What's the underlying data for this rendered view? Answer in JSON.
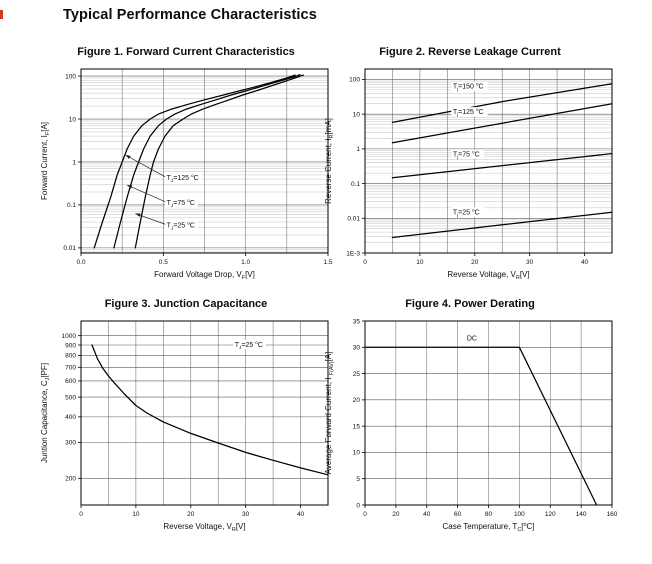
{
  "page": {
    "heading": "Typical Performance Characteristics"
  },
  "chart_data": [
    {
      "id": "fig1",
      "type": "line",
      "title": "Figure 1. Forward Current Characteristics",
      "x": {
        "scale": "linear",
        "min": 0,
        "max": 1.5,
        "grid_step": 0.25,
        "ticks": [
          {
            "v": 0,
            "label": "0.0"
          },
          {
            "v": 0.5,
            "label": "0.5"
          },
          {
            "v": 1,
            "label": "1.0"
          },
          {
            "v": 1.5,
            "label": "1.5"
          }
        ],
        "title": [
          {
            "t": "Forward Voltage Drop, V"
          },
          {
            "t": "F",
            "s": "sub"
          },
          {
            "t": "[V]"
          }
        ]
      },
      "y": {
        "scale": "log",
        "min": 0.0076,
        "max": 146,
        "ticks": [
          {
            "v": 0.01,
            "label": "0.01"
          },
          {
            "v": 0.1,
            "label": "0.1"
          },
          {
            "v": 1,
            "label": "1"
          },
          {
            "v": 10,
            "label": "10"
          },
          {
            "v": 100,
            "label": "100"
          }
        ],
        "title": [
          {
            "t": "Forward Current, I"
          },
          {
            "t": "F",
            "s": "sub"
          },
          {
            "t": "[A]"
          }
        ]
      },
      "series": [
        {
          "name": "TJ=125C",
          "points": [
            [
              0.08,
              0.01
            ],
            [
              0.13,
              0.04
            ],
            [
              0.18,
              0.15
            ],
            [
              0.22,
              0.5
            ],
            [
              0.25,
              1
            ],
            [
              0.28,
              2
            ],
            [
              0.32,
              4
            ],
            [
              0.37,
              7
            ],
            [
              0.42,
              10
            ],
            [
              0.47,
              13
            ],
            [
              0.55,
              17
            ],
            [
              0.65,
              22
            ],
            [
              0.75,
              28
            ],
            [
              0.85,
              35
            ],
            [
              0.95,
              44
            ],
            [
              1.05,
              55
            ],
            [
              1.15,
              70
            ],
            [
              1.25,
              90
            ],
            [
              1.3,
              105
            ]
          ]
        },
        {
          "name": "TJ=75C",
          "points": [
            [
              0.2,
              0.01
            ],
            [
              0.24,
              0.04
            ],
            [
              0.28,
              0.15
            ],
            [
              0.32,
              0.5
            ],
            [
              0.35,
              1
            ],
            [
              0.38,
              2
            ],
            [
              0.42,
              4
            ],
            [
              0.47,
              7
            ],
            [
              0.52,
              10
            ],
            [
              0.57,
              13
            ],
            [
              0.64,
              17
            ],
            [
              0.73,
              22
            ],
            [
              0.82,
              28
            ],
            [
              0.91,
              36
            ],
            [
              1,
              45
            ],
            [
              1.1,
              58
            ],
            [
              1.2,
              75
            ],
            [
              1.3,
              97
            ],
            [
              1.33,
              108
            ]
          ]
        },
        {
          "name": "TJ=25C",
          "points": [
            [
              0.33,
              0.01
            ],
            [
              0.36,
              0.04
            ],
            [
              0.39,
              0.15
            ],
            [
              0.42,
              0.5
            ],
            [
              0.44,
              1
            ],
            [
              0.47,
              2
            ],
            [
              0.51,
              4
            ],
            [
              0.56,
              7
            ],
            [
              0.62,
              10
            ],
            [
              0.67,
              13
            ],
            [
              0.74,
              17
            ],
            [
              0.82,
              22
            ],
            [
              0.9,
              28
            ],
            [
              0.98,
              36
            ],
            [
              1.07,
              46
            ],
            [
              1.16,
              60
            ],
            [
              1.26,
              80
            ],
            [
              1.35,
              105
            ]
          ]
        }
      ],
      "annotations": [
        {
          "segs": [
            {
              "t": "T"
            },
            {
              "t": "J",
              "s": "sub"
            },
            {
              "t": "=125 "
            },
            {
              "t": "o",
              "s": "sup"
            },
            {
              "t": "C"
            }
          ],
          "x": 0.52,
          "y": 0.38,
          "bg": true,
          "arrow": {
            "x": 0.27,
            "y": 1.45
          }
        },
        {
          "segs": [
            {
              "t": "T"
            },
            {
              "t": "J",
              "s": "sub"
            },
            {
              "t": "=75 "
            },
            {
              "t": "o",
              "s": "sup"
            },
            {
              "t": "C"
            }
          ],
          "x": 0.52,
          "y": 0.1,
          "bg": true,
          "arrow": {
            "x": 0.28,
            "y": 0.29
          }
        },
        {
          "segs": [
            {
              "t": "T"
            },
            {
              "t": "J",
              "s": "sub"
            },
            {
              "t": "=25 "
            },
            {
              "t": "o",
              "s": "sup"
            },
            {
              "t": "C"
            }
          ],
          "x": 0.52,
          "y": 0.03,
          "bg": true,
          "arrow": {
            "x": 0.33,
            "y": 0.063
          }
        }
      ]
    },
    {
      "id": "fig2",
      "type": "line",
      "title": "Figure 2. Reverse Leakage Current",
      "x": {
        "scale": "linear",
        "min": 0,
        "max": 45,
        "grid_step": 5,
        "ticks": [
          {
            "v": 0,
            "label": "0"
          },
          {
            "v": 10,
            "label": "10"
          },
          {
            "v": 20,
            "label": "20"
          },
          {
            "v": 30,
            "label": "30"
          },
          {
            "v": 40,
            "label": "40"
          }
        ],
        "title": [
          {
            "t": "Reverse Voltage, V"
          },
          {
            "t": "R",
            "s": "sub"
          },
          {
            "t": "[V]"
          }
        ]
      },
      "y": {
        "scale": "log",
        "min": 0.001,
        "max": 200,
        "ticks": [
          {
            "v": 0.001,
            "label": "1E-3"
          },
          {
            "v": 0.01,
            "label": "0.01"
          },
          {
            "v": 0.1,
            "label": "0.1"
          },
          {
            "v": 1,
            "label": "1"
          },
          {
            "v": 10,
            "label": "10"
          },
          {
            "v": 100,
            "label": "100"
          }
        ],
        "title": [
          {
            "t": "Reverse Current, I"
          },
          {
            "t": "R",
            "s": "sub"
          },
          {
            "t": "[mA]"
          }
        ]
      },
      "series": [
        {
          "name": "Tj=150C",
          "points": [
            [
              5,
              5.8
            ],
            [
              25,
              23
            ],
            [
              45,
              75
            ]
          ]
        },
        {
          "name": "Tj=125C",
          "points": [
            [
              5,
              1.5
            ],
            [
              25,
              5.5
            ],
            [
              45,
              20
            ]
          ]
        },
        {
          "name": "Tj=75C",
          "points": [
            [
              5,
              0.147
            ],
            [
              25,
              0.33
            ],
            [
              45,
              0.73
            ]
          ]
        },
        {
          "name": "Tj=25C",
          "points": [
            [
              5,
              0.0028
            ],
            [
              25,
              0.0065
            ],
            [
              45,
              0.015
            ]
          ]
        }
      ],
      "annotations": [
        {
          "segs": [
            {
              "t": "T"
            },
            {
              "t": "j",
              "s": "sub"
            },
            {
              "t": "=150 "
            },
            {
              "t": "o",
              "s": "sup"
            },
            {
              "t": "C"
            }
          ],
          "x": 16,
          "y": 55,
          "bg": true
        },
        {
          "segs": [
            {
              "t": "T"
            },
            {
              "t": "j",
              "s": "sub"
            },
            {
              "t": "=125 "
            },
            {
              "t": "o",
              "s": "sup"
            },
            {
              "t": "C"
            }
          ],
          "x": 16,
          "y": 10,
          "bg": true
        },
        {
          "segs": [
            {
              "t": "T"
            },
            {
              "t": "j",
              "s": "sub"
            },
            {
              "t": "=75 "
            },
            {
              "t": "o",
              "s": "sup"
            },
            {
              "t": "C"
            }
          ],
          "x": 16,
          "y": 0.6,
          "bg": true
        },
        {
          "segs": [
            {
              "t": "T"
            },
            {
              "t": "j",
              "s": "sub"
            },
            {
              "t": "=25 "
            },
            {
              "t": "o",
              "s": "sup"
            },
            {
              "t": "C"
            }
          ],
          "x": 16,
          "y": 0.013,
          "bg": true
        }
      ]
    },
    {
      "id": "fig3",
      "type": "line",
      "title": "Figure 3. Junction Capacitance",
      "x": {
        "scale": "linear",
        "min": 0,
        "max": 45,
        "grid_step": 5,
        "ticks": [
          {
            "v": 0,
            "label": "0"
          },
          {
            "v": 10,
            "label": "10"
          },
          {
            "v": 20,
            "label": "20"
          },
          {
            "v": 30,
            "label": "30"
          },
          {
            "v": 40,
            "label": "40"
          }
        ],
        "title": [
          {
            "t": "Reverse Voltage, V"
          },
          {
            "t": "R",
            "s": "sub"
          },
          {
            "t": "[V]"
          }
        ]
      },
      "y": {
        "scale": "log",
        "min": 148,
        "max": 1180,
        "grid": [
          200,
          300,
          400,
          500,
          600,
          700,
          800,
          900,
          1000
        ],
        "ticks": [
          {
            "v": 200,
            "label": "200"
          },
          {
            "v": 300,
            "label": "300"
          },
          {
            "v": 400,
            "label": "400"
          },
          {
            "v": 500,
            "label": "500"
          },
          {
            "v": 600,
            "label": "600"
          },
          {
            "v": 700,
            "label": "700"
          },
          {
            "v": 800,
            "label": "800"
          },
          {
            "v": 900,
            "label": "900"
          },
          {
            "v": 1000,
            "label": "1000"
          }
        ],
        "title": [
          {
            "t": "Juntion Capacitance, C"
          },
          {
            "t": "J",
            "s": "sub"
          },
          {
            "t": "[PF]"
          }
        ]
      },
      "series": [
        {
          "name": "TJ=25C",
          "points": [
            [
              2,
              900
            ],
            [
              3,
              770
            ],
            [
              4,
              690
            ],
            [
              5,
              635
            ],
            [
              6,
              590
            ],
            [
              8,
              515
            ],
            [
              10,
              455
            ],
            [
              12,
              418
            ],
            [
              15,
              378
            ],
            [
              20,
              332
            ],
            [
              25,
              298
            ],
            [
              30,
              268
            ],
            [
              35,
              245
            ],
            [
              40,
              225
            ],
            [
              45,
              208
            ]
          ]
        }
      ],
      "annotations": [
        {
          "segs": [
            {
              "t": "T"
            },
            {
              "t": "J",
              "s": "sub"
            },
            {
              "t": "=25 "
            },
            {
              "t": "o",
              "s": "sup"
            },
            {
              "t": "C"
            }
          ],
          "x": 28,
          "y": 880,
          "bg": true
        }
      ]
    },
    {
      "id": "fig4",
      "type": "line",
      "title": "Figure 4. Power Derating",
      "x": {
        "scale": "linear",
        "min": 0,
        "max": 160,
        "grid_step": 20,
        "ticks": [
          {
            "v": 0,
            "label": "0"
          },
          {
            "v": 20,
            "label": "20"
          },
          {
            "v": 40,
            "label": "40"
          },
          {
            "v": 60,
            "label": "60"
          },
          {
            "v": 80,
            "label": "80"
          },
          {
            "v": 100,
            "label": "100"
          },
          {
            "v": 120,
            "label": "120"
          },
          {
            "v": 140,
            "label": "140"
          },
          {
            "v": 160,
            "label": "160"
          }
        ],
        "title": [
          {
            "t": "Case Temperature, T"
          },
          {
            "t": "C",
            "s": "sub"
          },
          {
            "t": "["
          },
          {
            "t": "o",
            "s": "sup"
          },
          {
            "t": "C]"
          }
        ]
      },
      "y": {
        "scale": "linear",
        "min": 0,
        "max": 35,
        "grid_step": 5,
        "ticks": [
          {
            "v": 0,
            "label": "0"
          },
          {
            "v": 5,
            "label": "5"
          },
          {
            "v": 10,
            "label": "10"
          },
          {
            "v": 15,
            "label": "15"
          },
          {
            "v": 20,
            "label": "20"
          },
          {
            "v": 25,
            "label": "25"
          },
          {
            "v": 30,
            "label": "30"
          },
          {
            "v": 35,
            "label": "35"
          }
        ],
        "title": [
          {
            "t": "Average Forward Current, I "
          },
          {
            "t": "F(AV)",
            "s": "sub"
          },
          {
            "t": "[A]"
          }
        ]
      },
      "series": [
        {
          "name": "DC",
          "points": [
            [
              0,
              30
            ],
            [
              100,
              30
            ],
            [
              150,
              0
            ]
          ]
        }
      ],
      "annotations": [
        {
          "segs": [
            {
              "t": "DC"
            }
          ],
          "x": 66,
          "y": 31.3,
          "bg": false
        }
      ]
    }
  ]
}
